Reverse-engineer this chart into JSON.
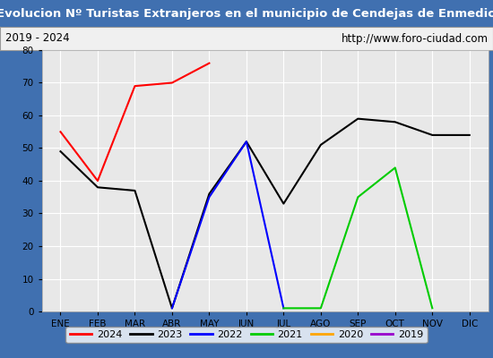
{
  "title": "Evolucion Nº Turistas Extranjeros en el municipio de Cendejas de Enmedio",
  "subtitle_left": "2019 - 2024",
  "subtitle_right": "http://www.foro-ciudad.com",
  "title_bg_color": "#4070b0",
  "title_text_color": "#ffffff",
  "subtitle_bg_color": "#f0f0f0",
  "subtitle_text_color": "#000000",
  "plot_bg_color": "#e8e8e8",
  "fig_bg_color": "#4070b0",
  "months": [
    "ENE",
    "FEB",
    "MAR",
    "ABR",
    "MAY",
    "JUN",
    "JUL",
    "AGO",
    "SEP",
    "OCT",
    "NOV",
    "DIC"
  ],
  "month_indices": [
    1,
    2,
    3,
    4,
    5,
    6,
    7,
    8,
    9,
    10,
    11,
    12
  ],
  "series": {
    "2024": {
      "color": "#ff0000",
      "data": [
        55,
        40,
        69,
        70,
        76,
        null,
        null,
        null,
        null,
        null,
        null,
        null
      ]
    },
    "2023": {
      "color": "#000000",
      "data": [
        49,
        38,
        37,
        1,
        36,
        52,
        33,
        51,
        59,
        58,
        54,
        54
      ]
    },
    "2022": {
      "color": "#0000ff",
      "data": [
        null,
        null,
        null,
        1,
        35,
        52,
        1,
        null,
        null,
        null,
        null,
        null
      ]
    },
    "2021": {
      "color": "#00cc00",
      "data": [
        null,
        null,
        null,
        null,
        null,
        null,
        1,
        1,
        35,
        44,
        1,
        null
      ]
    },
    "2020": {
      "color": "#ffa500",
      "data": [
        null,
        null,
        null,
        null,
        null,
        null,
        null,
        null,
        null,
        null,
        null,
        null
      ]
    },
    "2019": {
      "color": "#9900cc",
      "data": [
        null,
        null,
        null,
        null,
        null,
        null,
        null,
        null,
        null,
        null,
        null,
        null
      ]
    }
  },
  "ylim": [
    0,
    80
  ],
  "yticks": [
    0,
    10,
    20,
    30,
    40,
    50,
    60,
    70,
    80
  ],
  "legend_order": [
    "2024",
    "2023",
    "2022",
    "2021",
    "2020",
    "2019"
  ],
  "figsize": [
    5.5,
    4.0
  ],
  "dpi": 100
}
